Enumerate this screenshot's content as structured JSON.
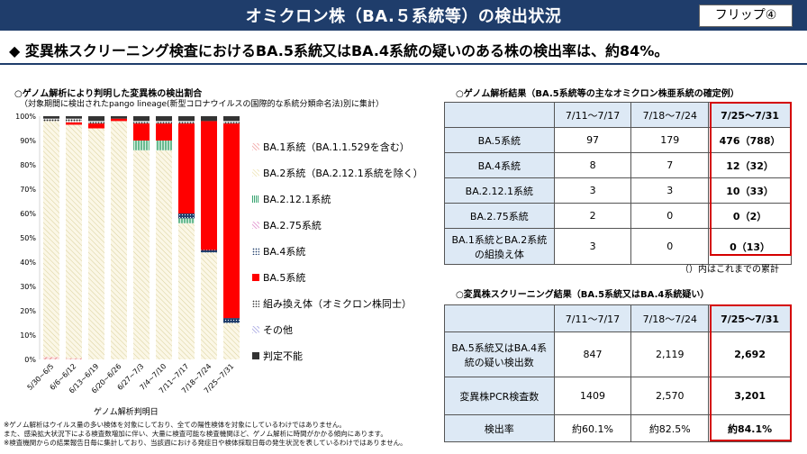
{
  "header": {
    "title": "オミクロン株（BA.５系統等）の検出状況",
    "flip_label": "フリップ④"
  },
  "headline": "◆ 変異株スクリーニング検査におけるBA.5系統又はBA.4系統の疑いのある株の検出率は、約84%。",
  "chart": {
    "heading": "○ゲノム解析により判明した変異株の検出割合",
    "subheading": "（対象期間に検出されたpango lineage(新型コロナウイルスの国際的な系統分類命名法)別に集計）",
    "xlabel": "ゲノム解析判明日"
  },
  "chart_data": {
    "type": "bar",
    "stacked": true,
    "categories": [
      "5/30~6/5",
      "6/6~6/12",
      "6/13~6/19",
      "6/20~6/26",
      "6/27~7/3",
      "7/4~7/10",
      "7/11~7/17",
      "7/18~7/24",
      "7/25~7/31"
    ],
    "yticks": [
      "0%",
      "10%",
      "20%",
      "30%",
      "40%",
      "50%",
      "60%",
      "70%",
      "80%",
      "90%",
      "100%"
    ],
    "ylim": [
      0,
      100
    ],
    "grid": false,
    "legend_position": "right",
    "series": [
      {
        "name": "BA.1系統（BA.1.1.529を含む）",
        "color": "#f4b6b6",
        "pattern": "hatch-pink",
        "values": [
          1,
          0.5,
          0,
          0,
          0,
          0,
          0,
          0,
          0
        ]
      },
      {
        "name": "BA.2系統（BA.2.12.1系統を除く）",
        "color": "#f2ebc6",
        "pattern": "hatch-tan",
        "values": [
          97,
          96,
          95,
          98,
          86,
          86,
          56,
          44,
          15
        ]
      },
      {
        "name": "BA.2.12.1系統",
        "color": "#3aa572",
        "pattern": "stripe-green",
        "values": [
          0,
          0,
          0,
          0,
          4,
          4,
          2,
          0,
          0
        ]
      },
      {
        "name": "BA.2.75系統",
        "color": "#e7a8d8",
        "pattern": "hatch-purple",
        "values": [
          0,
          0,
          0,
          0,
          0,
          0,
          0,
          0,
          0
        ]
      },
      {
        "name": "BA.4系統",
        "color": "#1f3d6b",
        "pattern": "dots-navy",
        "values": [
          0,
          0,
          0,
          0,
          0,
          0,
          2,
          1,
          2
        ]
      },
      {
        "name": "BA.5系統",
        "color": "#ff0000",
        "pattern": "solid",
        "values": [
          0,
          1,
          2,
          1,
          7,
          7,
          37,
          53,
          80
        ]
      },
      {
        "name": "組み換え体（オミクロン株同士）",
        "color": "#333333",
        "pattern": "dots-black",
        "values": [
          1,
          1.5,
          1,
          0,
          1,
          1,
          1,
          0,
          1
        ]
      },
      {
        "name": "その他",
        "color": "#b9b9e8",
        "pattern": "hatch-lavender",
        "values": [
          0,
          0,
          0,
          0,
          0,
          0,
          0,
          0,
          0
        ]
      },
      {
        "name": "判定不能",
        "color": "#333333",
        "pattern": "solid",
        "values": [
          1,
          1,
          2,
          1,
          2,
          2,
          2,
          2,
          2
        ]
      }
    ]
  },
  "genome_table": {
    "heading": "○ゲノム解析結果（BA.5系統等の主なオミクロン株亜系統の確定例）",
    "columns": [
      "7/11～7/17",
      "7/18～7/24",
      "7/25～7/31"
    ],
    "rows": [
      {
        "label": "BA.5系統",
        "values": [
          "97",
          "179",
          "476（788）"
        ]
      },
      {
        "label": "BA.4系統",
        "values": [
          "8",
          "7",
          "12（32）"
        ]
      },
      {
        "label": "BA.2.12.1系統",
        "values": [
          "3",
          "3",
          "10（33）"
        ]
      },
      {
        "label": "BA.2.75系統",
        "values": [
          "2",
          "0",
          "0（2）"
        ]
      },
      {
        "label": "BA.1系統とBA.2系統の組換え体",
        "values": [
          "3",
          "0",
          "0（13）"
        ]
      }
    ],
    "note": "（）内はこれまでの累計"
  },
  "screening_table": {
    "heading": "○変異株スクリーニング結果（BA.5系統又はBA.4系統疑い）",
    "columns": [
      "7/11～7/17",
      "7/18～7/24",
      "7/25～7/31"
    ],
    "rows": [
      {
        "label": "BA.5系統又はBA.4系統の疑い検出数",
        "values": [
          "847",
          "2,119",
          "2,692"
        ]
      },
      {
        "label": "変異株PCR検査数",
        "values": [
          "1409",
          "2,570",
          "3,201"
        ]
      },
      {
        "label": "検出率",
        "values": [
          "約60.1%",
          "約82.5%",
          "約84.1%"
        ]
      }
    ]
  },
  "footnotes": [
    "※ゲノム解析はウイルス量の多い検体を対象にしており、全ての陽性検体を対象にしているわけではありません。",
    "また、感染拡大状況下による検査数増加に伴い、大量に検査可能な検査機関ほど、ゲノム解析に時間がかかる傾向にあります。",
    "※検査機関からの結果報告日毎に集計しており、当該週における発症日や検体採取日毎の発生状況を表しているわけではありません。"
  ]
}
